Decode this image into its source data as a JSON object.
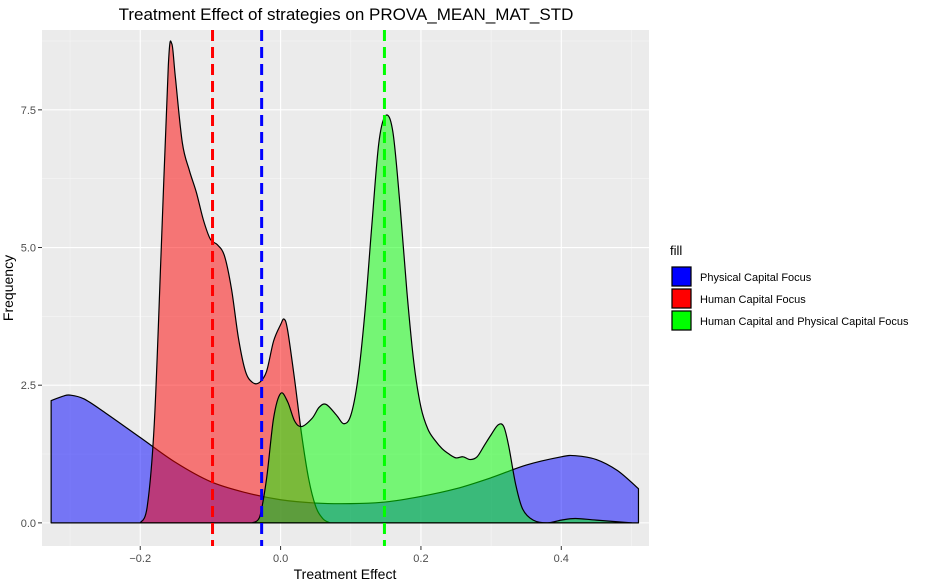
{
  "chart_data": {
    "type": "area",
    "title": "Treatment Effect of strategies on PROVA_MEAN_MAT_STD",
    "xlabel": "Treatment Effect",
    "ylabel": "Frequency",
    "xlim": [
      -0.34,
      0.525
    ],
    "ylim": [
      -0.42,
      8.95
    ],
    "x_ticks": [
      -0.2,
      0.0,
      0.2,
      0.4
    ],
    "x_tick_labels": [
      "−0.2",
      "0.0",
      "0.2",
      "0.4"
    ],
    "y_ticks": [
      0.0,
      2.5,
      5.0,
      7.5
    ],
    "y_tick_labels": [
      "0.0",
      "2.5",
      "5.0",
      "7.5"
    ],
    "grid": true,
    "legend": {
      "title": "fill",
      "position": "right",
      "items": [
        {
          "label": "Physical Capital Focus",
          "color": "#0000ff"
        },
        {
          "label": "Human Capital Focus",
          "color": "#ff0000"
        },
        {
          "label": "Human Capital and Physical Capital Focus",
          "color": "#00ff00"
        }
      ]
    },
    "series": [
      {
        "name": "Physical Capital Focus",
        "color": "#0000ff",
        "mean": -0.027,
        "points": [
          [
            -0.327,
            2.22
          ],
          [
            -0.31,
            2.3
          ],
          [
            -0.3,
            2.32
          ],
          [
            -0.28,
            2.25
          ],
          [
            -0.25,
            2.0
          ],
          [
            -0.2,
            1.55
          ],
          [
            -0.15,
            1.1
          ],
          [
            -0.1,
            0.75
          ],
          [
            -0.05,
            0.55
          ],
          [
            0.0,
            0.42
          ],
          [
            0.05,
            0.36
          ],
          [
            0.1,
            0.35
          ],
          [
            0.15,
            0.38
          ],
          [
            0.2,
            0.48
          ],
          [
            0.25,
            0.62
          ],
          [
            0.3,
            0.82
          ],
          [
            0.35,
            1.05
          ],
          [
            0.4,
            1.2
          ],
          [
            0.42,
            1.22
          ],
          [
            0.45,
            1.15
          ],
          [
            0.48,
            0.95
          ],
          [
            0.51,
            0.62
          ]
        ]
      },
      {
        "name": "Human Capital Focus",
        "color": "#ff0000",
        "mean": -0.097,
        "points": [
          [
            -0.2,
            0.0
          ],
          [
            -0.19,
            0.3
          ],
          [
            -0.18,
            1.8
          ],
          [
            -0.17,
            5.0
          ],
          [
            -0.16,
            8.3
          ],
          [
            -0.155,
            8.7
          ],
          [
            -0.15,
            8.1
          ],
          [
            -0.14,
            6.9
          ],
          [
            -0.13,
            6.4
          ],
          [
            -0.12,
            6.0
          ],
          [
            -0.11,
            5.5
          ],
          [
            -0.1,
            5.15
          ],
          [
            -0.09,
            5.05
          ],
          [
            -0.08,
            4.85
          ],
          [
            -0.07,
            4.25
          ],
          [
            -0.06,
            3.35
          ],
          [
            -0.05,
            2.75
          ],
          [
            -0.04,
            2.55
          ],
          [
            -0.03,
            2.55
          ],
          [
            -0.02,
            2.75
          ],
          [
            -0.01,
            3.3
          ],
          [
            0.0,
            3.6
          ],
          [
            0.005,
            3.7
          ],
          [
            0.01,
            3.5
          ],
          [
            0.02,
            2.6
          ],
          [
            0.03,
            1.6
          ],
          [
            0.04,
            0.8
          ],
          [
            0.05,
            0.3
          ],
          [
            0.06,
            0.08
          ],
          [
            0.07,
            0.0
          ]
        ]
      },
      {
        "name": "Human Capital and Physical Capital Focus",
        "color": "#00ff00",
        "mean": 0.148,
        "points": [
          [
            -0.04,
            0.0
          ],
          [
            -0.03,
            0.1
          ],
          [
            -0.02,
            0.8
          ],
          [
            -0.01,
            1.9
          ],
          [
            0.0,
            2.35
          ],
          [
            0.01,
            2.2
          ],
          [
            0.02,
            1.85
          ],
          [
            0.03,
            1.75
          ],
          [
            0.045,
            1.9
          ],
          [
            0.055,
            2.1
          ],
          [
            0.065,
            2.15
          ],
          [
            0.08,
            1.95
          ],
          [
            0.09,
            1.8
          ],
          [
            0.1,
            1.95
          ],
          [
            0.11,
            2.6
          ],
          [
            0.12,
            3.8
          ],
          [
            0.13,
            5.4
          ],
          [
            0.14,
            6.9
          ],
          [
            0.15,
            7.4
          ],
          [
            0.16,
            7.1
          ],
          [
            0.17,
            5.8
          ],
          [
            0.18,
            4.2
          ],
          [
            0.19,
            2.9
          ],
          [
            0.2,
            2.1
          ],
          [
            0.21,
            1.7
          ],
          [
            0.22,
            1.5
          ],
          [
            0.23,
            1.35
          ],
          [
            0.24,
            1.25
          ],
          [
            0.25,
            1.18
          ],
          [
            0.26,
            1.2
          ],
          [
            0.27,
            1.15
          ],
          [
            0.28,
            1.2
          ],
          [
            0.29,
            1.4
          ],
          [
            0.3,
            1.6
          ],
          [
            0.31,
            1.78
          ],
          [
            0.318,
            1.75
          ],
          [
            0.325,
            1.4
          ],
          [
            0.335,
            0.7
          ],
          [
            0.345,
            0.25
          ],
          [
            0.36,
            0.05
          ],
          [
            0.38,
            0.0
          ],
          [
            0.4,
            0.05
          ],
          [
            0.42,
            0.08
          ],
          [
            0.45,
            0.05
          ],
          [
            0.5,
            0.0
          ]
        ]
      }
    ]
  }
}
